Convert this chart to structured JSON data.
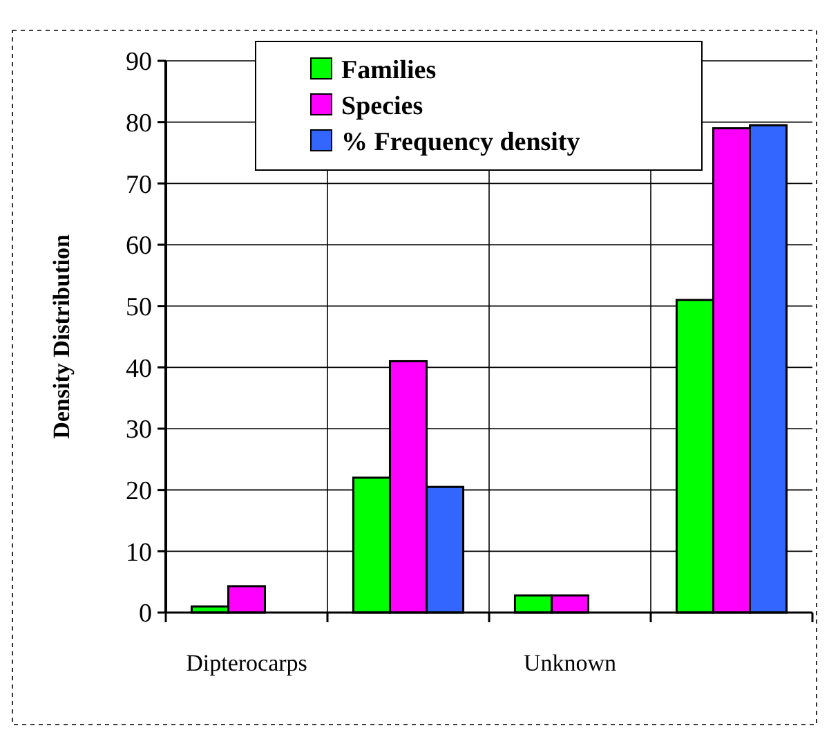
{
  "chart_data": {
    "type": "bar",
    "ylabel": "Density Distribution",
    "categories": [
      "Dipterocarps",
      null,
      "Unknown",
      null
    ],
    "series": [
      {
        "name": "Families",
        "color": "#00ff00",
        "values": [
          1,
          22,
          2.8,
          51
        ]
      },
      {
        "name": "Species",
        "color": "#ff00ff",
        "values": [
          4.3,
          41,
          2.8,
          79
        ]
      },
      {
        "name": "% Frequency density",
        "color": "#3366ff",
        "values": [
          null,
          20.5,
          null,
          79.5
        ]
      }
    ],
    "ylim": [
      0,
      90
    ],
    "yticks": [
      0,
      10,
      20,
      30,
      40,
      50,
      60,
      70,
      80,
      90
    ],
    "grid": true,
    "legend": "top"
  }
}
